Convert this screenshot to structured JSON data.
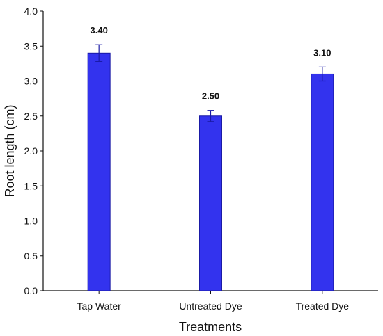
{
  "chart_data": {
    "type": "bar",
    "title": "",
    "xlabel": "Treatments",
    "ylabel": "Root length (cm)",
    "categories": [
      "Tap Water",
      "Untreated Dye",
      "Treated Dye"
    ],
    "values": [
      3.4,
      2.5,
      3.1
    ],
    "errors": [
      0.12,
      0.08,
      0.1
    ],
    "data_labels": [
      "3.40",
      "2.50",
      "3.10"
    ],
    "ylim": [
      0,
      4.0
    ],
    "yticks": [
      0.0,
      0.5,
      1.0,
      1.5,
      2.0,
      2.5,
      3.0,
      3.5,
      4.0
    ],
    "ytick_labels": [
      "0.0",
      "0.5",
      "1.0",
      "1.5",
      "2.0",
      "2.5",
      "3.0",
      "3.5",
      "4.0"
    ],
    "grid": false,
    "bar_color": "#3333ee",
    "bar_edge_color": "#1a1aa6",
    "error_bar_color": "#1a1aa6"
  }
}
